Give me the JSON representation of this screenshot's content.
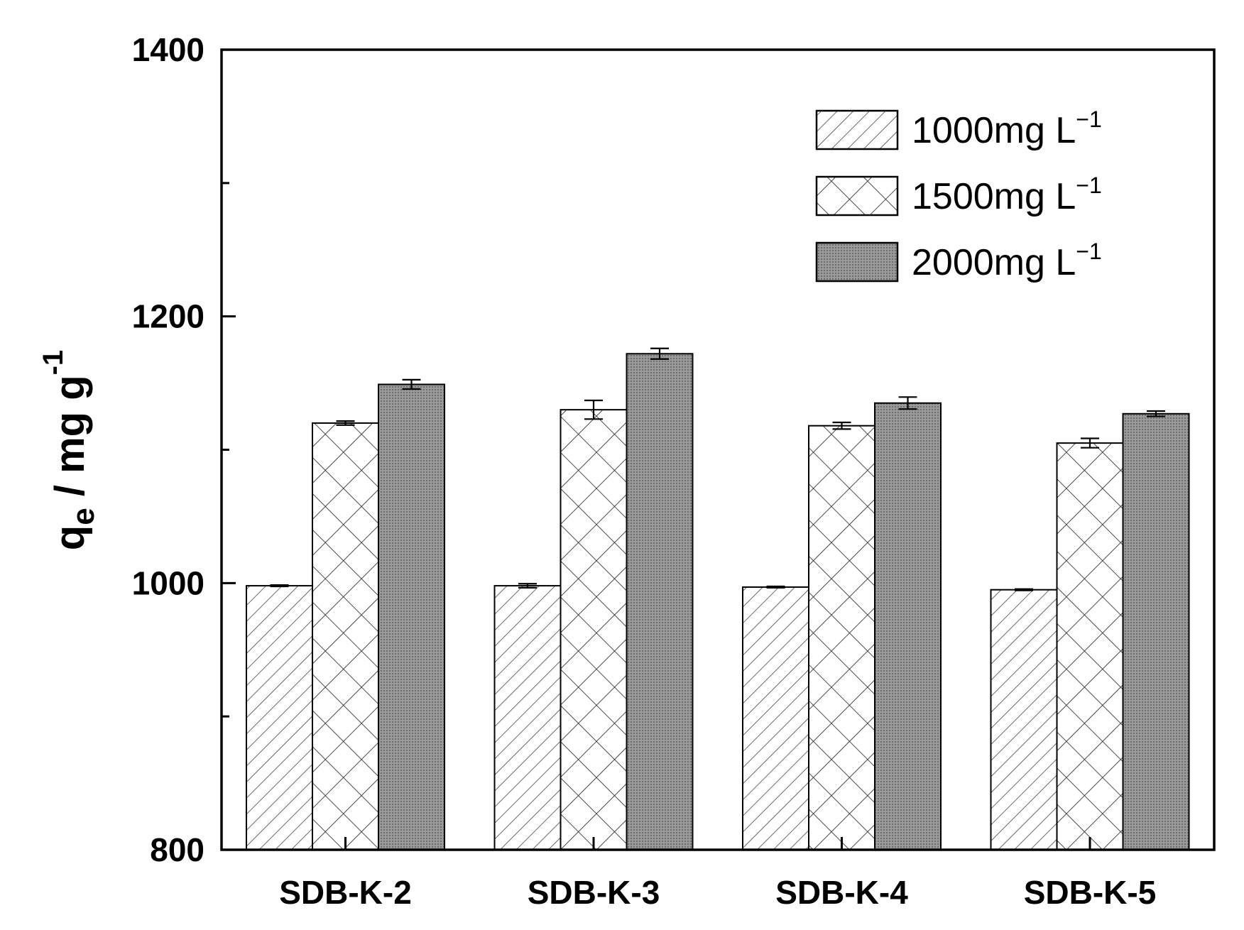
{
  "chart_data": {
    "type": "bar",
    "title": "",
    "xlabel": "",
    "ylabel": {
      "main": "q",
      "sub": "e",
      "unit": " / mg g",
      "sup": "-1"
    },
    "ylim": [
      800,
      1400
    ],
    "yticks": [
      800,
      1000,
      1200,
      1400
    ],
    "yticks_minor": [
      900,
      1100,
      1300
    ],
    "categories": [
      "SDB-K-2",
      "SDB-K-3",
      "SDB-K-4",
      "SDB-K-5"
    ],
    "series": [
      {
        "name": "1000mg L",
        "sup": "−1",
        "pattern": "diagonal-hatch",
        "values": [
          998,
          998,
          997,
          995
        ],
        "errors": [
          0.5,
          1.5,
          0.5,
          0.5
        ]
      },
      {
        "name": "1500mg L",
        "sup": "−1",
        "pattern": "cross-hatch",
        "values": [
          1120,
          1130,
          1118,
          1105
        ],
        "errors": [
          1.5,
          7,
          2.5,
          3.5
        ]
      },
      {
        "name": "2000mg L",
        "sup": "−1",
        "pattern": "dotted-gray",
        "values": [
          1149,
          1172,
          1135,
          1127
        ],
        "errors": [
          3.5,
          4,
          4.5,
          2
        ]
      }
    ],
    "legend_position": "top-right",
    "grid": false
  }
}
